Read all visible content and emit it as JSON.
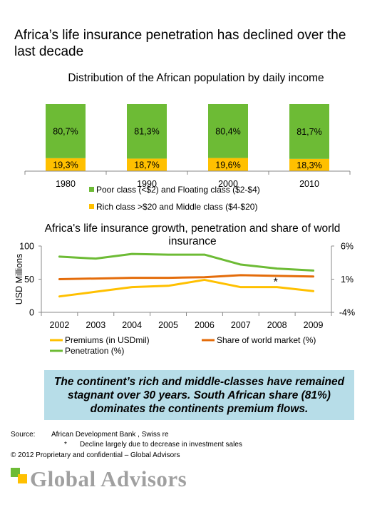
{
  "page": {
    "title": "Africa’s life insurance penetration has declined over the last decade",
    "callout": "The continent’s rich and middle-classes  have remained stagnant over 30 years. South African share (81%) dominates the continents premium flows.",
    "source_label": "Source:",
    "source_text": "African Development Bank , Swiss re",
    "footnote_marker": "*",
    "footnote_text": "Decline largely due to decrease in investment sales",
    "copyright": "© 2012 Proprietary and confidential – Global Advisors",
    "logo_text": "Global Advisors",
    "colors": {
      "green": "#6dbb35",
      "yellow": "#ffc000",
      "orange": "#e46c0a",
      "callout_bg": "#b7dde8",
      "logo_grey": "#a0a0a0"
    }
  },
  "chart_data": [
    {
      "type": "bar",
      "stacked": true,
      "title": "Distribution of the African population by daily income",
      "categories": [
        "1980",
        "1990",
        "2000",
        "2010"
      ],
      "series": [
        {
          "name": "Rich class >$20 and Middle class ($4-$20)",
          "values": [
            19.3,
            18.7,
            19.6,
            18.3
          ],
          "labels": [
            "19,3%",
            "18,7%",
            "19,6%",
            "18,3%"
          ],
          "color": "#ffc000"
        },
        {
          "name": "Poor class (<$2) and Floating class ($2-$4)",
          "values": [
            80.7,
            81.3,
            80.4,
            81.7
          ],
          "labels": [
            "80,7%",
            "81,3%",
            "80,4%",
            "81,7%"
          ],
          "color": "#6dbb35"
        }
      ],
      "legend": [
        "Poor class (<$2) and Floating class ($2-$4)",
        "Rich class >$20 and Middle class ($4-$20)"
      ],
      "legend_colors": [
        "#6dbb35",
        "#ffc000"
      ],
      "ylim": [
        0,
        100
      ]
    },
    {
      "type": "line",
      "title": "Africa's life insurance growth, penetration and share of world insurance",
      "x": [
        "2002",
        "2003",
        "2004",
        "2005",
        "2006",
        "2007",
        "2008",
        "2009"
      ],
      "ylabel": "USD Millions",
      "ylim": [
        0,
        100
      ],
      "y_ticks": [
        "0",
        "50",
        "100"
      ],
      "y2lim": [
        -4,
        6
      ],
      "y2_ticks": [
        "-4%",
        "1%",
        "6%"
      ],
      "series": [
        {
          "name": "Premiums (in USDmil)",
          "axis": "left",
          "values": [
            24,
            31,
            38,
            40,
            49,
            38,
            38,
            32
          ],
          "color": "#ffc000"
        },
        {
          "name": "Share of world market (%)",
          "axis": "right",
          "values": [
            1.0,
            1.1,
            1.2,
            1.2,
            1.3,
            1.6,
            1.5,
            1.4
          ],
          "color": "#e46c0a"
        },
        {
          "name": "Penetration (%)",
          "axis": "right",
          "values": [
            4.4,
            4.1,
            4.8,
            4.7,
            4.7,
            3.2,
            2.6,
            2.3
          ],
          "color": "#6dbb35"
        }
      ],
      "annotation": {
        "text": "*",
        "x": "2008"
      },
      "legend": [
        "Premiums (in USDmil)",
        "Share of world market (%)",
        "Penetration (%)"
      ],
      "legend_colors": [
        "#ffc000",
        "#e46c0a",
        "#6dbb35"
      ]
    }
  ]
}
